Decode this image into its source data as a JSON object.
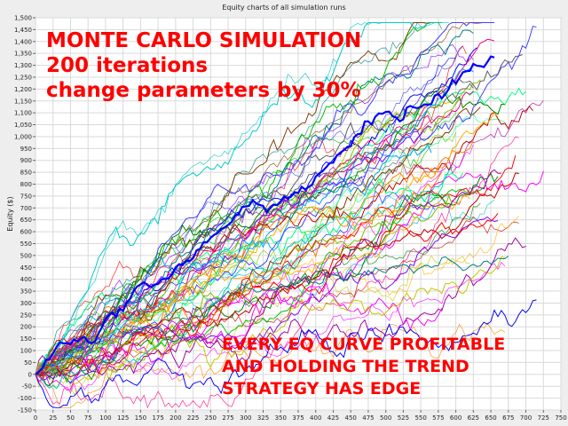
{
  "chart_data": {
    "type": "line",
    "title": "Equity charts of all simulation runs",
    "xlabel": "",
    "ylabel": "Equity ($)",
    "xlim": [
      0,
      750
    ],
    "ylim": [
      -150,
      1500
    ],
    "x_ticks": [
      0,
      25,
      50,
      75,
      100,
      125,
      150,
      175,
      200,
      225,
      250,
      275,
      300,
      325,
      350,
      375,
      400,
      425,
      450,
      475,
      500,
      525,
      550,
      575,
      600,
      625,
      650,
      675,
      700,
      725,
      750
    ],
    "y_ticks": [
      -150,
      -100,
      -50,
      0,
      50,
      100,
      150,
      200,
      250,
      300,
      350,
      400,
      450,
      500,
      550,
      600,
      650,
      700,
      750,
      800,
      850,
      900,
      950,
      1000,
      1050,
      1100,
      1150,
      1200,
      1250,
      1300,
      1350,
      1400,
      1450,
      1500
    ],
    "grid": true,
    "legend": "none",
    "series_count": 200,
    "equity_start_approx": 0,
    "equity_end_range_approx": [
      550,
      1450
    ],
    "highlight_series_color": "#0000ff"
  },
  "annotations": {
    "top_lines": [
      "MONTE CARLO SIMULATION",
      "200 iterations",
      "change parameters by 30%"
    ],
    "bottom_lines": [
      "EVERY EQ CURVE PROFITABLE",
      "AND HOLDING THE TREND",
      "STRATEGY HAS EDGE"
    ],
    "color": "#ff0000"
  },
  "colors": {
    "plot_background": "#ffffff",
    "frame_background": "#eeeeee",
    "grid": "#d9d9d9"
  }
}
